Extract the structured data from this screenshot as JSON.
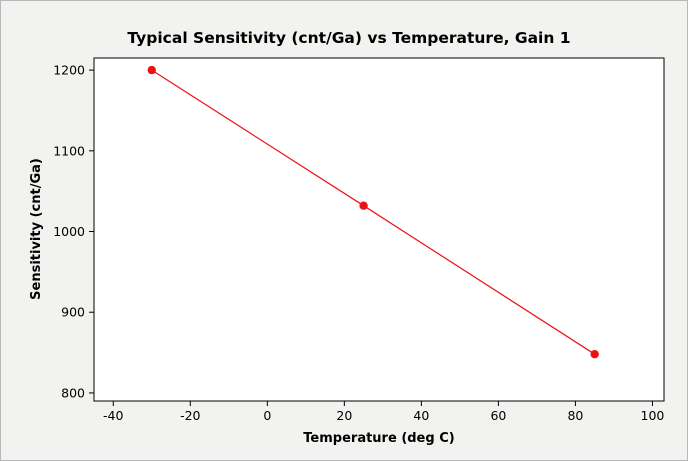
{
  "chart_data": {
    "type": "line",
    "title": "Typical Sensitivity (cnt/Ga) vs Temperature, Gain 1",
    "xlabel": "Temperature (deg C)",
    "ylabel": "Sensitivity (cnt/Ga)",
    "xlim": [
      -45,
      103
    ],
    "ylim": [
      790,
      1215
    ],
    "x_ticks": [
      -40,
      -20,
      0,
      20,
      40,
      60,
      80,
      100
    ],
    "y_ticks": [
      800,
      900,
      1000,
      1100,
      1200
    ],
    "grid": false,
    "series": [
      {
        "x": [
          -30,
          25,
          85
        ],
        "y": [
          1200,
          1032,
          848
        ],
        "color": "#ee1111"
      }
    ]
  }
}
